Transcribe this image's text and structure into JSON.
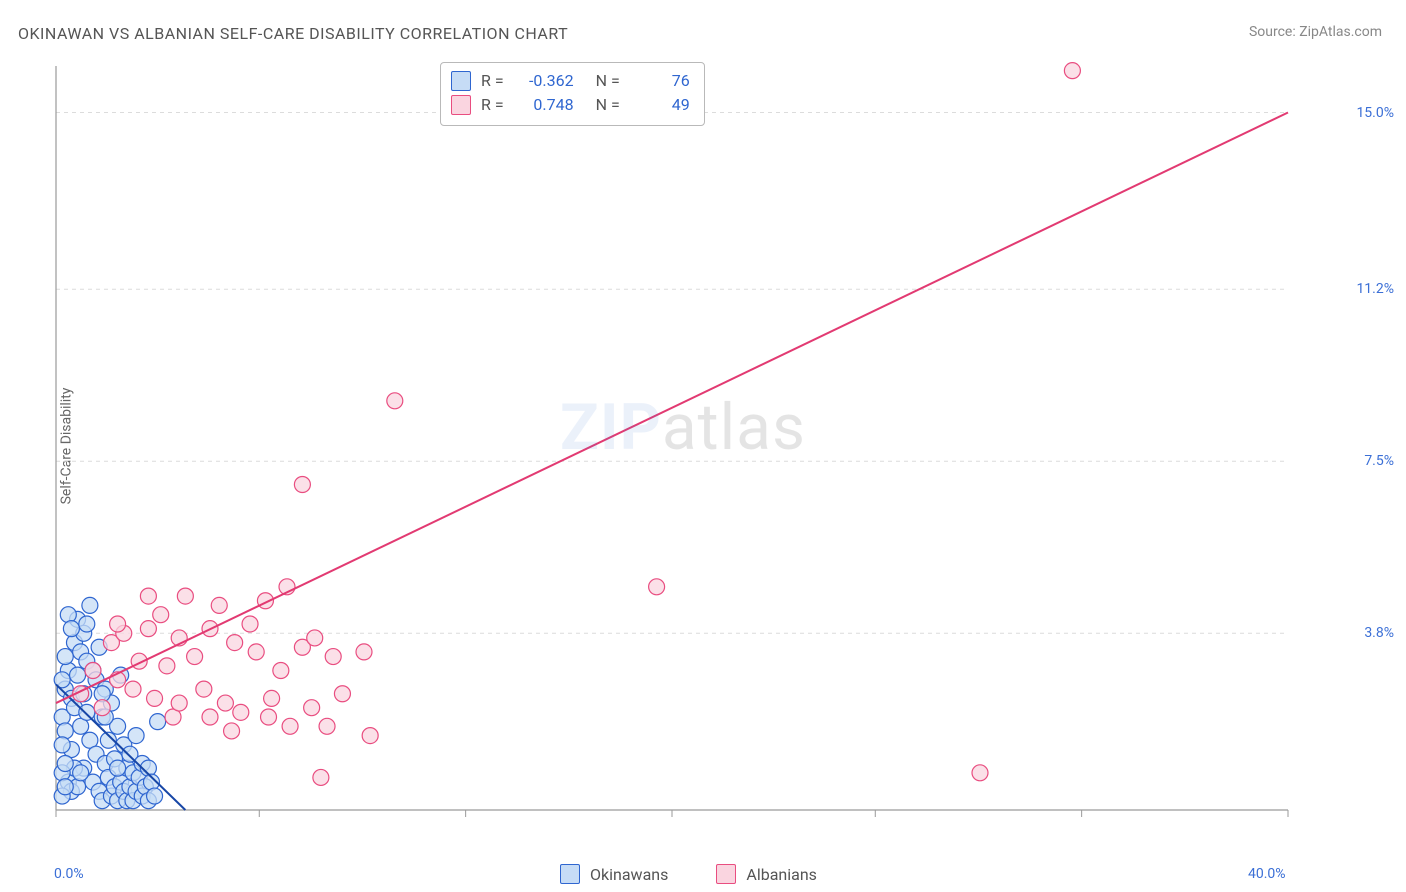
{
  "title": "OKINAWAN VS ALBANIAN SELF-CARE DISABILITY CORRELATION CHART",
  "source_prefix": "Source: ",
  "source_name": "ZipAtlas.com",
  "ylabel": "Self-Care Disability",
  "watermark_bold": "ZIP",
  "watermark_light": "atlas",
  "chart": {
    "type": "scatter",
    "background_color": "#ffffff",
    "grid_color": "#dcdcdc",
    "axis_color": "#9a9a9a",
    "tick_color": "#9a9a9a",
    "label_color": "#3b6fd6",
    "xlim": [
      0,
      40
    ],
    "ylim": [
      0,
      16
    ],
    "xticks": [
      0,
      6.6,
      13.3,
      20,
      26.6,
      33.3,
      40
    ],
    "yticks": [
      0,
      3.8,
      7.5,
      11.2,
      15.0
    ],
    "xlabels": {
      "0": "0.0%",
      "40": "40.0%"
    },
    "ylabels": {
      "3.8": "3.8%",
      "7.5": "7.5%",
      "11.2": "11.2%",
      "15.0": "15.0%"
    },
    "marker_radius": 8,
    "marker_stroke_width": 1.2,
    "line_width": 2,
    "series": [
      {
        "name": "Okinawans",
        "fill": "#c6dcf6",
        "stroke": "#2f66d0",
        "line_color": "#1746a6",
        "R": "-0.362",
        "N": "76",
        "trend": {
          "x1": 0,
          "y1": 2.7,
          "x2": 4.2,
          "y2": 0
        },
        "points": [
          [
            0.2,
            2.0
          ],
          [
            0.3,
            2.6
          ],
          [
            0.4,
            3.0
          ],
          [
            0.5,
            1.3
          ],
          [
            0.5,
            2.4
          ],
          [
            0.6,
            3.6
          ],
          [
            0.6,
            2.2
          ],
          [
            0.7,
            4.1
          ],
          [
            0.7,
            2.9
          ],
          [
            0.8,
            3.4
          ],
          [
            0.8,
            1.8
          ],
          [
            0.9,
            2.5
          ],
          [
            0.9,
            0.9
          ],
          [
            1.0,
            3.2
          ],
          [
            1.0,
            2.1
          ],
          [
            1.1,
            4.4
          ],
          [
            1.1,
            1.5
          ],
          [
            1.2,
            3.0
          ],
          [
            1.2,
            0.6
          ],
          [
            1.3,
            2.8
          ],
          [
            1.3,
            1.2
          ],
          [
            1.4,
            3.5
          ],
          [
            1.4,
            0.4
          ],
          [
            1.5,
            2.0
          ],
          [
            1.5,
            0.2
          ],
          [
            1.6,
            1.0
          ],
          [
            1.6,
            2.6
          ],
          [
            1.7,
            0.7
          ],
          [
            1.7,
            1.5
          ],
          [
            1.8,
            0.3
          ],
          [
            1.8,
            2.3
          ],
          [
            1.9,
            1.1
          ],
          [
            1.9,
            0.5
          ],
          [
            2.0,
            1.8
          ],
          [
            2.0,
            0.2
          ],
          [
            2.1,
            0.6
          ],
          [
            2.1,
            2.9
          ],
          [
            2.2,
            0.4
          ],
          [
            2.2,
            1.4
          ],
          [
            2.3,
            0.9
          ],
          [
            2.3,
            0.2
          ],
          [
            2.4,
            1.2
          ],
          [
            2.4,
            0.5
          ],
          [
            2.5,
            0.8
          ],
          [
            2.5,
            0.2
          ],
          [
            2.6,
            1.6
          ],
          [
            2.6,
            0.4
          ],
          [
            2.7,
            0.7
          ],
          [
            2.8,
            0.3
          ],
          [
            2.8,
            1.0
          ],
          [
            2.9,
            0.5
          ],
          [
            3.0,
            0.2
          ],
          [
            3.0,
            0.9
          ],
          [
            3.1,
            0.6
          ],
          [
            3.2,
            0.3
          ],
          [
            3.3,
            1.9
          ],
          [
            0.4,
            0.6
          ],
          [
            0.5,
            0.4
          ],
          [
            0.6,
            0.9
          ],
          [
            0.7,
            0.5
          ],
          [
            0.8,
            0.8
          ],
          [
            0.9,
            3.8
          ],
          [
            1.0,
            4.0
          ],
          [
            0.3,
            1.7
          ],
          [
            0.4,
            4.2
          ],
          [
            0.5,
            3.9
          ],
          [
            0.3,
            3.3
          ],
          [
            0.2,
            1.4
          ],
          [
            0.2,
            0.8
          ],
          [
            0.2,
            2.8
          ],
          [
            0.2,
            0.3
          ],
          [
            0.3,
            0.5
          ],
          [
            0.3,
            1.0
          ],
          [
            1.5,
            2.5
          ],
          [
            1.6,
            2.0
          ],
          [
            2.0,
            0.9
          ]
        ]
      },
      {
        "name": "Albanians",
        "fill": "#fad5e0",
        "stroke": "#e94d80",
        "line_color": "#e23a72",
        "R": "0.748",
        "N": "49",
        "trend": {
          "x1": 0,
          "y1": 2.3,
          "x2": 40,
          "y2": 15.0
        },
        "points": [
          [
            0.8,
            2.5
          ],
          [
            1.2,
            3.0
          ],
          [
            1.5,
            2.2
          ],
          [
            1.8,
            3.6
          ],
          [
            2.0,
            2.8
          ],
          [
            2.2,
            3.8
          ],
          [
            2.5,
            2.6
          ],
          [
            2.7,
            3.2
          ],
          [
            3.0,
            3.9
          ],
          [
            3.2,
            2.4
          ],
          [
            3.4,
            4.2
          ],
          [
            3.6,
            3.1
          ],
          [
            3.8,
            2.0
          ],
          [
            4.0,
            3.7
          ],
          [
            4.2,
            4.6
          ],
          [
            4.5,
            3.3
          ],
          [
            4.8,
            2.6
          ],
          [
            5.0,
            3.9
          ],
          [
            5.3,
            4.4
          ],
          [
            5.5,
            2.3
          ],
          [
            5.8,
            3.6
          ],
          [
            6.0,
            2.1
          ],
          [
            6.3,
            4.0
          ],
          [
            6.5,
            3.4
          ],
          [
            6.8,
            4.5
          ],
          [
            7.0,
            2.4
          ],
          [
            7.3,
            3.0
          ],
          [
            7.6,
            1.8
          ],
          [
            8.0,
            3.5
          ],
          [
            8.3,
            2.2
          ],
          [
            8.6,
            0.7
          ],
          [
            8.8,
            1.8
          ],
          [
            9.0,
            3.3
          ],
          [
            9.3,
            2.5
          ],
          [
            5.7,
            1.7
          ],
          [
            6.9,
            2.0
          ],
          [
            7.5,
            4.8
          ],
          [
            8.4,
            3.7
          ],
          [
            10.0,
            3.4
          ],
          [
            10.2,
            1.6
          ],
          [
            5.0,
            2.0
          ],
          [
            4.0,
            2.3
          ],
          [
            11.0,
            8.8
          ],
          [
            8.0,
            7.0
          ],
          [
            19.5,
            4.8
          ],
          [
            30.0,
            0.8
          ],
          [
            33.0,
            15.9
          ],
          [
            2.0,
            4.0
          ],
          [
            3.0,
            4.6
          ]
        ]
      }
    ]
  },
  "stats_box": {
    "rows": [
      {
        "swatch_fill": "#c6dcf6",
        "swatch_stroke": "#2f66d0",
        "R": "-0.362",
        "N": "76"
      },
      {
        "swatch_fill": "#fad5e0",
        "swatch_stroke": "#e94d80",
        "R": "0.748",
        "N": "49"
      }
    ],
    "r_label": "R =",
    "n_label": "N ="
  },
  "legend": {
    "items": [
      {
        "name": "Okinawans",
        "fill": "#c6dcf6",
        "stroke": "#2f66d0"
      },
      {
        "name": "Albanians",
        "fill": "#fad5e0",
        "stroke": "#e94d80"
      }
    ]
  }
}
